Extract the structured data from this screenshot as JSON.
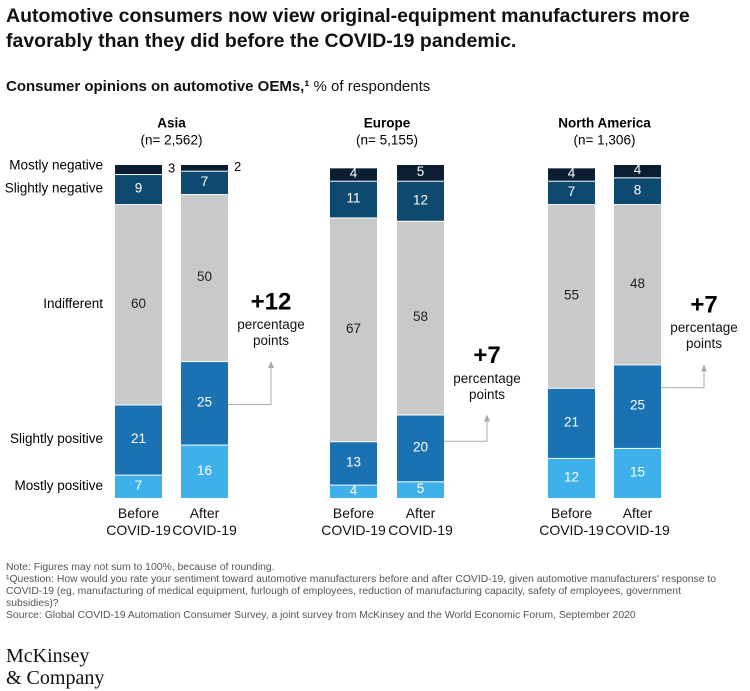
{
  "title": "Automotive consumers now view original-equipment manufacturers more favorably than they did before the COVID-19 pandemic.",
  "subtitle": "Consumer opinions on automotive OEMs,¹",
  "unit": "% of respondents",
  "chart_data": [
    {
      "type": "bar",
      "stacked": true,
      "legend": "left",
      "title": "Asia",
      "subtitle": "(n= 2,562)",
      "categories": [
        "Before COVID-19",
        "After COVID-19"
      ],
      "series": [
        {
          "name": "Mostly positive",
          "color": "#3fb1ea",
          "values": [
            7,
            16
          ]
        },
        {
          "name": "Slightly positive",
          "color": "#1a72b3",
          "values": [
            21,
            25
          ]
        },
        {
          "name": "Indifferent",
          "color": "#c9c9c9",
          "values": [
            60,
            50
          ]
        },
        {
          "name": "Slightly negative",
          "color": "#0e4a70",
          "values": [
            9,
            7
          ]
        },
        {
          "name": "Mostly negative",
          "color": "#0b1e33",
          "values": [
            3,
            2
          ]
        }
      ],
      "annotation": {
        "value": "+12",
        "label": "percentage points"
      }
    },
    {
      "type": "bar",
      "stacked": true,
      "title": "Europe",
      "subtitle": "(n= 5,155)",
      "categories": [
        "Before COVID-19",
        "After COVID-19"
      ],
      "series": [
        {
          "name": "Mostly positive",
          "color": "#3fb1ea",
          "values": [
            4,
            5
          ]
        },
        {
          "name": "Slightly positive",
          "color": "#1a72b3",
          "values": [
            13,
            20
          ]
        },
        {
          "name": "Indifferent",
          "color": "#c9c9c9",
          "values": [
            67,
            58
          ]
        },
        {
          "name": "Slightly negative",
          "color": "#0e4a70",
          "values": [
            11,
            12
          ]
        },
        {
          "name": "Mostly negative",
          "color": "#0b1e33",
          "values": [
            4,
            5
          ]
        }
      ],
      "annotation": {
        "value": "+7",
        "label": "percentage points"
      }
    },
    {
      "type": "bar",
      "stacked": true,
      "title": "North America",
      "subtitle": "(n= 1,306)",
      "categories": [
        "Before COVID-19",
        "After COVID-19"
      ],
      "series": [
        {
          "name": "Mostly positive",
          "color": "#3fb1ea",
          "values": [
            12,
            15
          ]
        },
        {
          "name": "Slightly positive",
          "color": "#1a72b3",
          "values": [
            21,
            25
          ]
        },
        {
          "name": "Indifferent",
          "color": "#c9c9c9",
          "values": [
            55,
            48
          ]
        },
        {
          "name": "Slightly negative",
          "color": "#0e4a70",
          "values": [
            7,
            8
          ]
        },
        {
          "name": "Mostly negative",
          "color": "#0b1e33",
          "values": [
            4,
            4
          ]
        }
      ],
      "annotation": {
        "value": "+7",
        "label": "percentage points"
      }
    }
  ],
  "notes": [
    "Note: Figures may not sum to 100%, because of rounding.",
    "¹Question: How would you rate your sentiment toward automotive manufacturers before and after COVID-19, given automotive manufacturers' response to COVID-19 (eg, manufacturing of medical equipment, furlough of employees, reduction of manufacturing capacity, safety of employees, government subsidies)?",
    "Source: Global COVID-19 Automation Consumer Survey, a joint survey from McKinsey and the World Economic Forum, September 2020"
  ],
  "logo": [
    "McKinsey",
    "& Company"
  ]
}
